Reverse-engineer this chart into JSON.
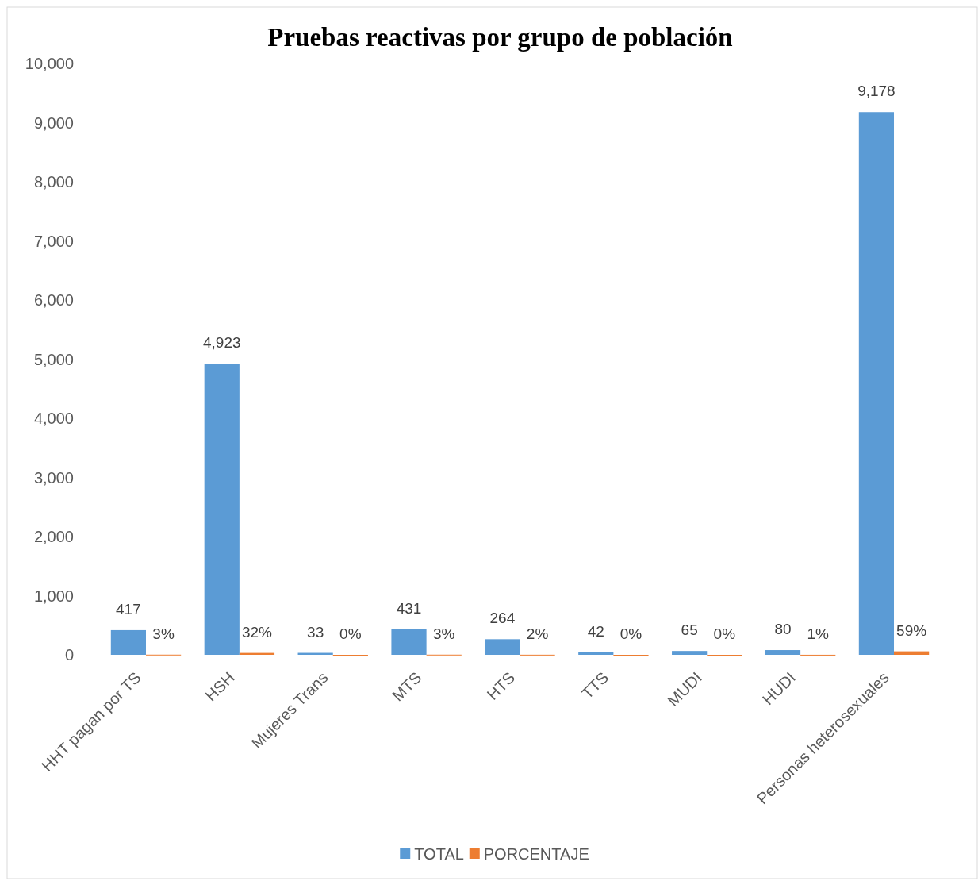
{
  "chart_data": {
    "type": "bar",
    "title": "Pruebas reactivas por grupo de población",
    "categories": [
      "HHT pagan por TS",
      "HSH",
      "Mujeres Trans",
      "MTS",
      "HTS",
      "TTS",
      "MUDI",
      "HUDI",
      "Personas heterosexuales"
    ],
    "series": [
      {
        "name": "TOTAL",
        "color": "#5b9bd5",
        "values": [
          417,
          4923,
          33,
          431,
          264,
          42,
          65,
          80,
          9178
        ],
        "value_labels": [
          "417",
          "4,923",
          "33",
          "431",
          "264",
          "42",
          "65",
          "80",
          "9,178"
        ]
      },
      {
        "name": "PORCENTAJE",
        "color": "#ed7d31",
        "values": [
          3,
          32,
          0,
          3,
          2,
          0,
          0,
          1,
          59
        ],
        "value_labels": [
          "3%",
          "32%",
          "0%",
          "3%",
          "2%",
          "0%",
          "0%",
          "1%",
          "59%"
        ]
      }
    ],
    "ylim": [
      0,
      10000
    ],
    "yticks": [
      0,
      {
        "value": 1000,
        "label": "1,000"
      },
      {
        "value": 2000,
        "label": "2,000"
      },
      {
        "value": 3000,
        "label": "3,000"
      },
      {
        "value": 4000,
        "label": "4,000"
      },
      {
        "value": 5000,
        "label": "5,000"
      },
      {
        "value": 6000,
        "label": "6,000"
      },
      {
        "value": 7000,
        "label": "7,000"
      },
      {
        "value": 8000,
        "label": "8,000"
      },
      {
        "value": 9000,
        "label": "9,000"
      },
      {
        "value": 10000,
        "label": "10,000"
      }
    ],
    "legend": "bottom"
  }
}
